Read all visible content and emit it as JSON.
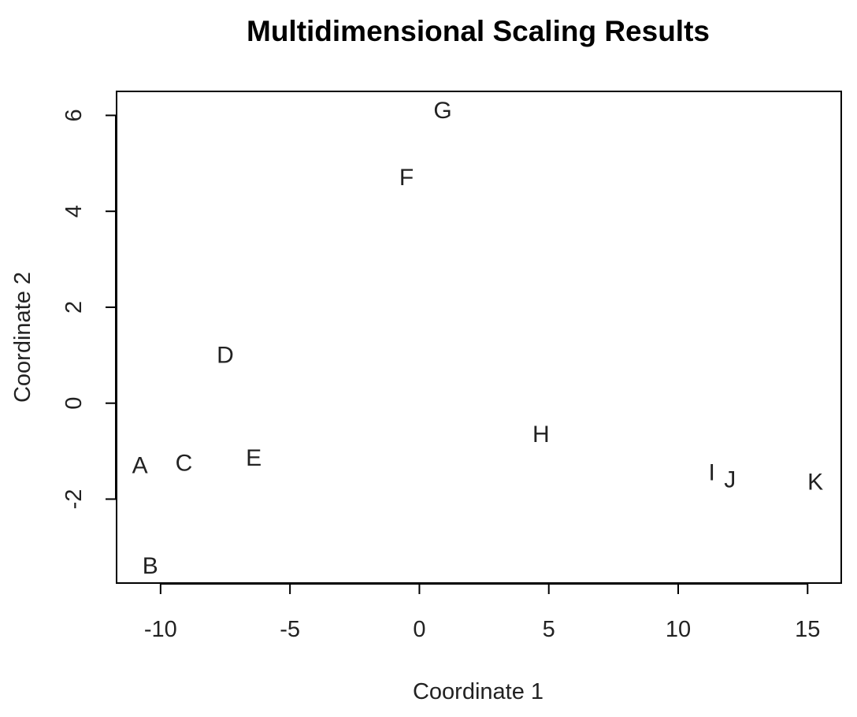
{
  "chart_data": {
    "type": "scatter",
    "title": "Multidimensional Scaling Results",
    "xlabel": "Coordinate 1",
    "ylabel": "Coordinate 2",
    "xlim": [
      -11.7,
      16.3
    ],
    "ylim": [
      -3.75,
      6.5
    ],
    "xticks": [
      -10,
      -5,
      0,
      5,
      10,
      15
    ],
    "yticks": [
      -2,
      0,
      2,
      4,
      6
    ],
    "grid": false,
    "legend": "none",
    "marker": "text",
    "color": "#222222",
    "points": [
      {
        "label": "A",
        "x": -10.8,
        "y": -1.3
      },
      {
        "label": "B",
        "x": -10.4,
        "y": -3.4
      },
      {
        "label": "C",
        "x": -9.1,
        "y": -1.25
      },
      {
        "label": "D",
        "x": -7.5,
        "y": 1.0
      },
      {
        "label": "E",
        "x": -6.4,
        "y": -1.15
      },
      {
        "label": "F",
        "x": -0.5,
        "y": 4.7
      },
      {
        "label": "G",
        "x": 0.9,
        "y": 6.1
      },
      {
        "label": "H",
        "x": 4.7,
        "y": -0.65
      },
      {
        "label": "I",
        "x": 11.3,
        "y": -1.45
      },
      {
        "label": "J",
        "x": 12.0,
        "y": -1.6
      },
      {
        "label": "K",
        "x": 15.3,
        "y": -1.65
      }
    ]
  }
}
